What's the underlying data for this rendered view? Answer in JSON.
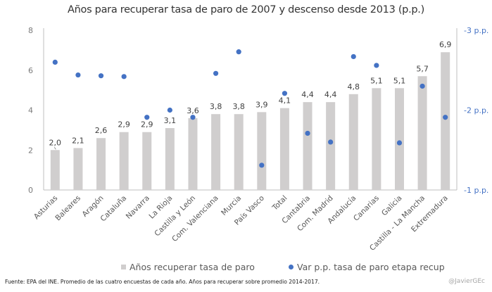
{
  "chart_data": {
    "type": "bar+scatter",
    "title": "Años para recuperar tasa de paro de 2007 y descenso desde 2013 (p.p.)",
    "categories": [
      "Asturias",
      "Baleares",
      "Aragón",
      "Cataluña",
      "Navarra",
      "La Rioja",
      "Castilla y León",
      "Com. Valenciana",
      "Murcia",
      "País Vasco",
      "Total",
      "Cantabria",
      "Com. Madrid",
      "Andalucía",
      "Canarias",
      "Galicia",
      "Castilla - La Mancha",
      "Extremadura"
    ],
    "series": [
      {
        "name": "Años recuperar tasa de paro",
        "type": "bar",
        "axis": "left",
        "color": "#d0cece",
        "values": [
          2.0,
          2.1,
          2.6,
          2.9,
          2.9,
          3.1,
          3.6,
          3.8,
          3.8,
          3.9,
          4.1,
          4.4,
          4.4,
          4.8,
          5.1,
          5.1,
          5.7,
          6.9
        ],
        "labels": [
          "2,0",
          "2,1",
          "2,6",
          "2,9",
          "2,9",
          "3,1",
          "3,6",
          "3,8",
          "3,8",
          "3,9",
          "4,1",
          "4,4",
          "4,4",
          "4,8",
          "5,1",
          "5,1",
          "5,7",
          "6,9"
        ]
      },
      {
        "name": "Var p.p. tasa de paro etapa recup",
        "type": "scatter",
        "axis": "right",
        "color": "#4472c4",
        "values": [
          -2.6,
          -2.44,
          -2.43,
          -2.42,
          -1.91,
          -2.0,
          -1.91,
          -2.46,
          -2.73,
          -1.31,
          -2.21,
          -1.71,
          -1.6,
          -2.67,
          -2.56,
          -1.59,
          -2.3,
          -1.91
        ]
      }
    ],
    "left_axis": {
      "ylim": [
        0,
        8
      ],
      "ticks": [
        "0",
        "2",
        "4",
        "6",
        "8"
      ],
      "tick_values": [
        0,
        2,
        4,
        6,
        8
      ]
    },
    "right_axis": {
      "ylim": [
        -1,
        -3
      ],
      "inverted": true,
      "ticks": [
        "-1 p.p.",
        "-2 p.p.",
        "-3 p.p."
      ],
      "tick_values": [
        -1,
        -2,
        -3
      ]
    },
    "xlabel": "",
    "ylabel": "",
    "grid": false,
    "legend": "bottom"
  },
  "legend": {
    "bar_label": "Años recuperar tasa de paro",
    "dot_label": "Var p.p. tasa de paro etapa recup"
  },
  "footer": {
    "source": "Fuente: EPA del INE. Promedio de las cuatro encuestas de cada año. Años para recuperar sobre promedio 2014-2017.",
    "credit": "@JavierGEc"
  }
}
